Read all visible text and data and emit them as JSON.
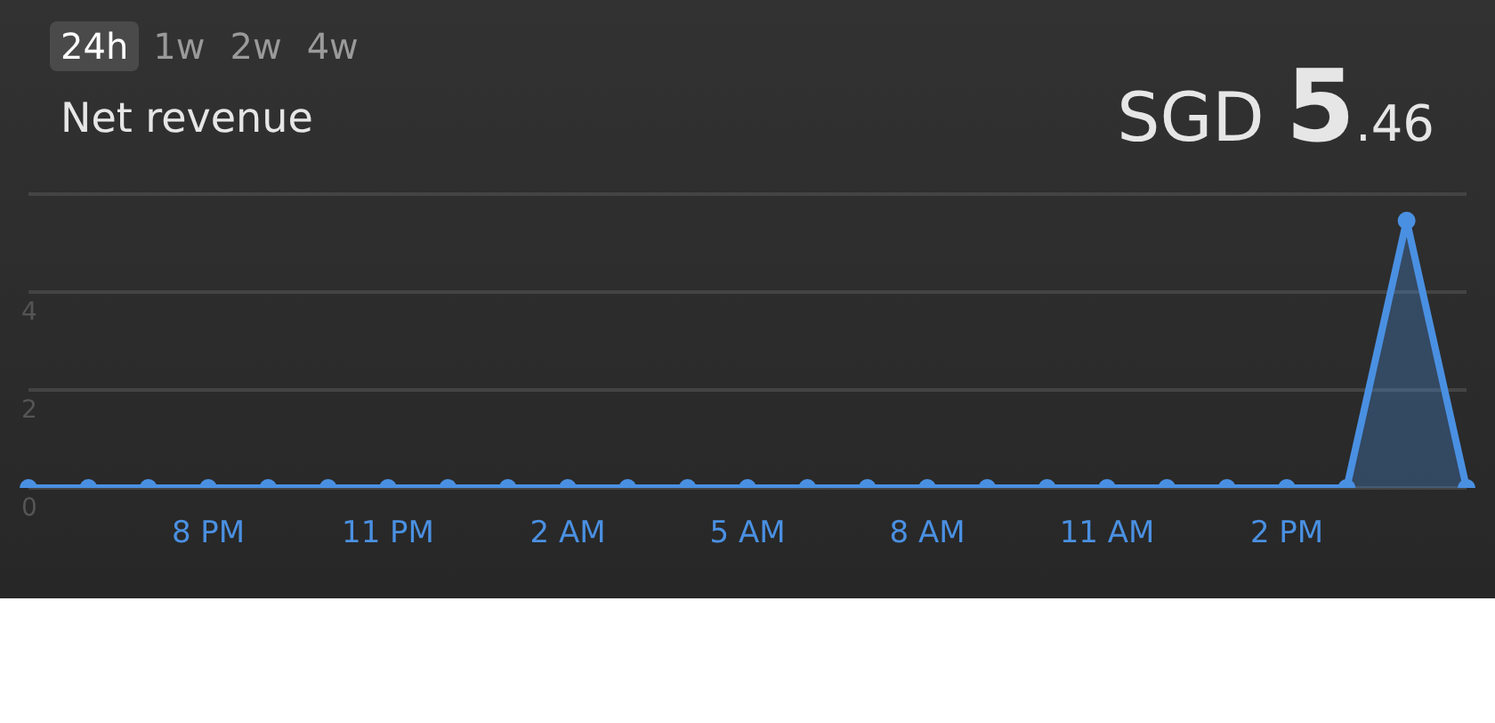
{
  "chart_data": {
    "type": "area",
    "title": "Net revenue",
    "annotations": [
      "24h",
      "1w",
      "2w",
      "4w",
      "SGD 5.46"
    ],
    "categories": [
      null,
      null,
      null,
      "8 PM",
      null,
      null,
      "11 PM",
      null,
      null,
      "2 AM",
      null,
      null,
      "5 AM",
      null,
      null,
      "8 AM",
      null,
      null,
      "11 AM",
      null,
      null,
      "2 PM",
      null,
      null,
      null
    ],
    "series": [
      {
        "color": "#4a90e2",
        "values": [
          0,
          0,
          0,
          0,
          0,
          0,
          0,
          0,
          0,
          0,
          0,
          0,
          0,
          0,
          0,
          0,
          0,
          0,
          0,
          0,
          0,
          0,
          0,
          5.46,
          0
        ]
      }
    ],
    "ylim": [
      0,
      6
    ],
    "yticks": [
      0,
      2,
      4,
      {
        "value": 6,
        "label": null
      }
    ],
    "grid": "y",
    "legend": false,
    "marker": "circle",
    "line_style": "solid"
  }
}
